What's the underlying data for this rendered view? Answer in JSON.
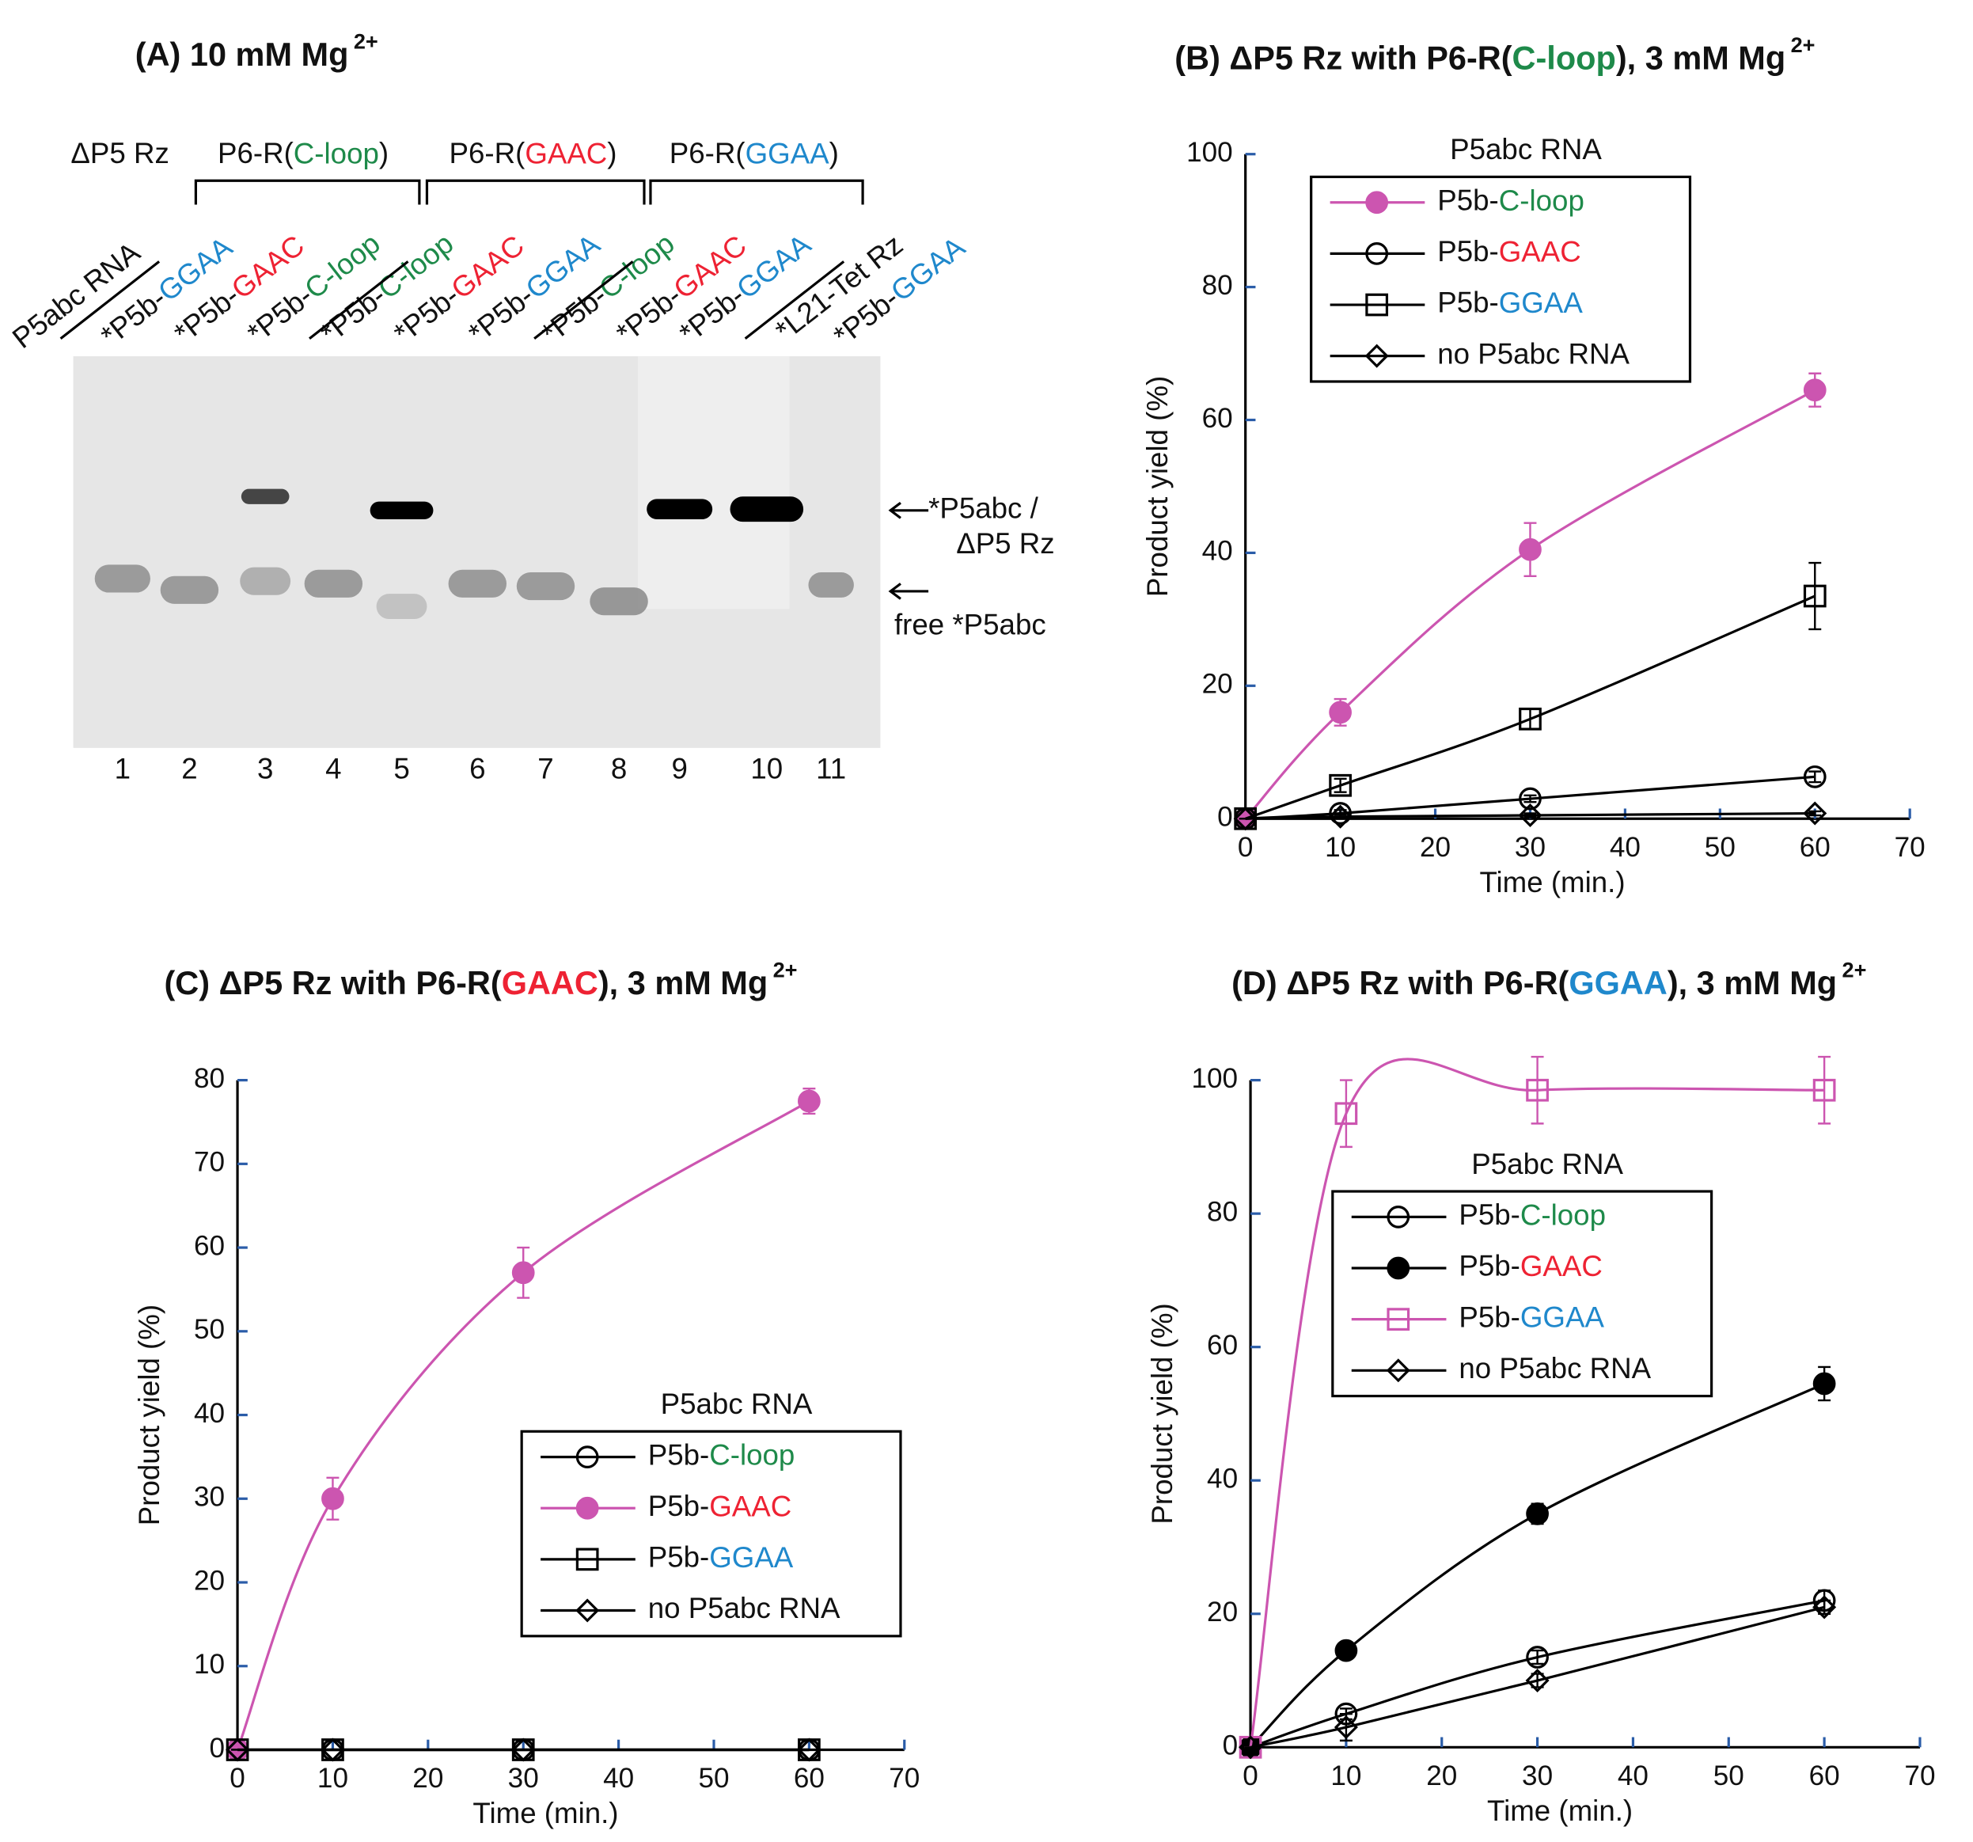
{
  "motif_colors": {
    "C-loop": "#1e8a4a",
    "GAAC": "#ee2233",
    "GGAA": "#1f88cc"
  },
  "gel": {
    "title": "(A) 10 mM Mg",
    "title_superscript": "2+",
    "groups": [
      "ΔP5 Rz",
      "P6-R(C-loop)",
      "P6-R(GAAC)",
      "P6-R(GGAA)"
    ],
    "row_label": "P5abc RNA",
    "lane_labels": [
      "*P5b-GGAA",
      "*P5b-GAAC",
      "*P5b-C-loop",
      "*P5b-C-loop",
      "*P5b-GAAC",
      "*P5b-GGAA",
      "*P5b-C-loop",
      "*P5b-GAAC",
      "*P5b-GGAA",
      "*L21-Tet Rz",
      "*P5b-GGAA"
    ],
    "lane_numbers": [
      "1",
      "2",
      "3",
      "4",
      "5",
      "6",
      "7",
      "8",
      "9",
      "10",
      "11"
    ],
    "annotations": [
      "*P5abc /",
      "ΔP5 Rz",
      "free *P5abc"
    ]
  },
  "chart_data": [
    {
      "type": "line",
      "title": "(B) ΔP5 Rz with P6-R(C-loop), 3 mM Mg",
      "title_superscript": "2+",
      "x_label": "Time (min.)",
      "y_label": "Product yield (%)",
      "legend_title": "P5abc RNA",
      "x": [
        0,
        10,
        30,
        60
      ],
      "xlim": [
        0,
        70
      ],
      "xticks": [
        0,
        10,
        20,
        30,
        40,
        50,
        60,
        70
      ],
      "ylim": [
        0,
        100
      ],
      "yticks": [
        0,
        20,
        40,
        60,
        80,
        100
      ],
      "series": [
        {
          "name": "P5b-C-loop",
          "color": "#cc55b0",
          "marker": "filled-circle",
          "values": [
            0,
            16,
            40.5,
            64.5
          ],
          "errors": [
            0,
            2,
            4,
            2.5
          ]
        },
        {
          "name": "P5b-GAAC",
          "color": "#000000",
          "marker": "circle",
          "values": [
            0,
            0.8,
            3,
            6.3
          ],
          "errors": [
            0,
            0.5,
            0.5,
            0.8
          ]
        },
        {
          "name": "P5b-GGAA",
          "color": "#000000",
          "marker": "square",
          "values": [
            0,
            5,
            15,
            33.5
          ],
          "errors": [
            0,
            1,
            1.5,
            5
          ]
        },
        {
          "name": "no P5abc RNA",
          "color": "#000000",
          "marker": "diamond",
          "values": [
            0,
            0.3,
            0.5,
            0.8
          ],
          "errors": [
            0,
            0.3,
            0.3,
            0.3
          ]
        }
      ]
    },
    {
      "type": "line",
      "title": "(C) ΔP5 Rz with P6-R(GAAC), 3 mM Mg",
      "title_superscript": "2+",
      "x_label": "Time (min.)",
      "y_label": "Product yield (%)",
      "legend_title": "P5abc RNA",
      "x": [
        0,
        10,
        30,
        60
      ],
      "xlim": [
        0,
        70
      ],
      "xticks": [
        0,
        10,
        20,
        30,
        40,
        50,
        60,
        70
      ],
      "ylim": [
        0,
        80
      ],
      "yticks": [
        0,
        10,
        20,
        30,
        40,
        50,
        60,
        70,
        80
      ],
      "series": [
        {
          "name": "P5b-C-loop",
          "color": "#000000",
          "marker": "circle",
          "values": [
            0,
            0,
            0,
            0
          ],
          "errors": [
            0,
            0,
            0,
            0
          ]
        },
        {
          "name": "P5b-GAAC",
          "color": "#cc55b0",
          "marker": "filled-circle",
          "values": [
            0,
            30,
            57,
            77.5
          ],
          "errors": [
            0,
            2.5,
            3,
            1.5
          ]
        },
        {
          "name": "P5b-GGAA",
          "color": "#000000",
          "marker": "square",
          "values": [
            0,
            0,
            0,
            0
          ],
          "errors": [
            0,
            0,
            0,
            0
          ]
        },
        {
          "name": "no P5abc RNA",
          "color": "#000000",
          "marker": "diamond",
          "values": [
            0,
            0,
            0,
            0
          ],
          "errors": [
            0,
            0,
            0,
            0
          ]
        }
      ]
    },
    {
      "type": "line",
      "title": "(D) ΔP5 Rz with P6-R(GGAA), 3 mM Mg",
      "title_superscript": "2+",
      "x_label": "Time (min.)",
      "y_label": "Product yield (%)",
      "legend_title": "P5abc RNA",
      "x": [
        0,
        10,
        30,
        60
      ],
      "xlim": [
        0,
        70
      ],
      "xticks": [
        0,
        10,
        20,
        30,
        40,
        50,
        60,
        70
      ],
      "ylim": [
        0,
        100
      ],
      "yticks": [
        0,
        20,
        40,
        60,
        80,
        100
      ],
      "series": [
        {
          "name": "P5b-C-loop",
          "color": "#000000",
          "marker": "circle",
          "values": [
            0,
            5,
            13.5,
            22
          ],
          "errors": [
            0,
            0.8,
            1,
            1.5
          ]
        },
        {
          "name": "P5b-GAAC",
          "color": "#000000",
          "marker": "filled-circle",
          "values": [
            0,
            14.5,
            35,
            54.5
          ],
          "errors": [
            0,
            1,
            1.5,
            2.5
          ]
        },
        {
          "name": "P5b-GGAA",
          "color": "#cc55b0",
          "marker": "square",
          "values": [
            0,
            95,
            98.5,
            98.5
          ],
          "errors": [
            0,
            5,
            5,
            5
          ]
        },
        {
          "name": "no P5abc RNA",
          "color": "#000000",
          "marker": "diamond",
          "values": [
            0,
            3,
            10,
            21
          ],
          "errors": [
            0,
            2,
            1,
            1
          ]
        }
      ]
    }
  ]
}
